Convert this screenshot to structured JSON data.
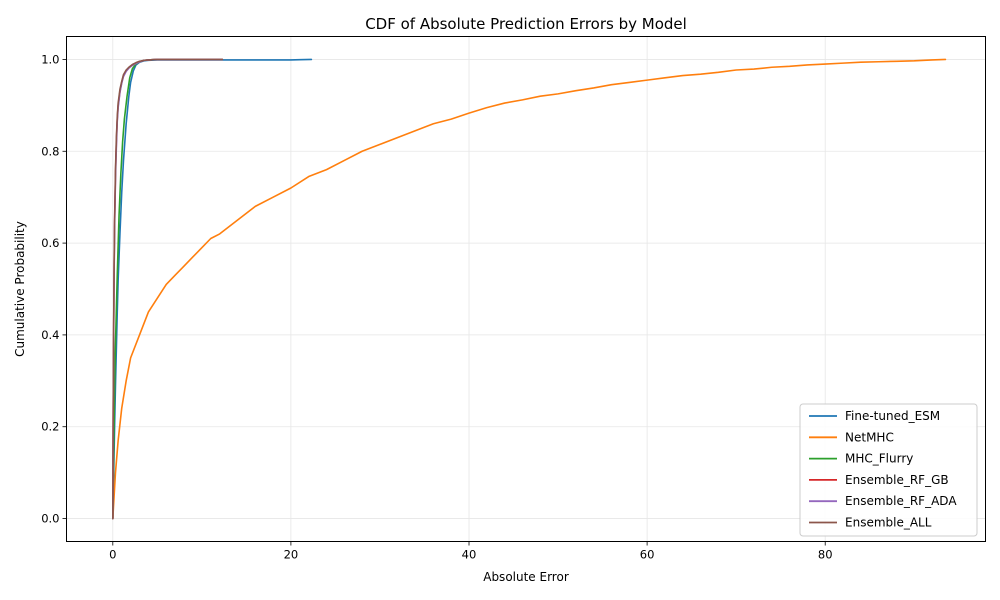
{
  "chart_data": {
    "type": "line",
    "title": "CDF of Absolute Prediction Errors by Model",
    "xlabel": "Absolute Error",
    "ylabel": "Cumulative Probability",
    "xlim": [
      -5.2,
      98
    ],
    "ylim": [
      -0.05,
      1.05
    ],
    "xticks": [
      0,
      20,
      40,
      60,
      80
    ],
    "yticks": [
      0.0,
      0.2,
      0.4,
      0.6,
      0.8,
      1.0
    ],
    "grid": true,
    "legend_position": "lower-right",
    "series": [
      {
        "name": "Fine-tuned_ESM",
        "color": "#1f77b4",
        "x": [
          0,
          0.1,
          0.2,
          0.3,
          0.4,
          0.5,
          0.6,
          0.8,
          1.0,
          1.2,
          1.5,
          1.8,
          2.0,
          2.3,
          2.6,
          3.0,
          3.5,
          4.0,
          5.0,
          8.0,
          12.0,
          16.0,
          20.0,
          21.0,
          22.3
        ],
        "y": [
          0,
          0.1,
          0.2,
          0.29,
          0.37,
          0.45,
          0.52,
          0.62,
          0.71,
          0.78,
          0.86,
          0.92,
          0.95,
          0.975,
          0.988,
          0.994,
          0.997,
          0.998,
          0.999,
          0.999,
          0.999,
          0.999,
          0.999,
          0.9995,
          1.0
        ]
      },
      {
        "name": "NetMHC",
        "color": "#ff7f0e",
        "x": [
          0,
          0.3,
          0.6,
          1.0,
          1.5,
          2.0,
          3.0,
          4.0,
          5.0,
          6.0,
          7.0,
          8.0,
          9.0,
          10.0,
          11.0,
          12.0,
          14.0,
          16.0,
          18.0,
          20.0,
          22.0,
          24.0,
          26.0,
          28.0,
          30.0,
          32.0,
          34.0,
          36.0,
          38.0,
          40.0,
          42.0,
          44.0,
          46.0,
          48.0,
          50.0,
          52.0,
          54.0,
          56.0,
          58.0,
          60.0,
          62.0,
          64.0,
          66.0,
          68.0,
          70.0,
          72.0,
          74.0,
          76.0,
          78.0,
          80.0,
          82.0,
          84.0,
          86.0,
          88.0,
          90.0,
          92.0,
          93.5
        ],
        "y": [
          0,
          0.1,
          0.17,
          0.24,
          0.3,
          0.35,
          0.4,
          0.45,
          0.48,
          0.51,
          0.53,
          0.55,
          0.57,
          0.59,
          0.61,
          0.62,
          0.65,
          0.68,
          0.7,
          0.72,
          0.745,
          0.76,
          0.78,
          0.8,
          0.815,
          0.83,
          0.845,
          0.86,
          0.87,
          0.883,
          0.895,
          0.905,
          0.912,
          0.92,
          0.925,
          0.932,
          0.938,
          0.945,
          0.95,
          0.955,
          0.96,
          0.965,
          0.968,
          0.972,
          0.977,
          0.979,
          0.983,
          0.985,
          0.988,
          0.99,
          0.992,
          0.994,
          0.995,
          0.996,
          0.997,
          0.999,
          1.0
        ]
      },
      {
        "name": "MHC_Flurry",
        "color": "#2ca02c",
        "x": [
          0,
          0.1,
          0.2,
          0.3,
          0.5,
          0.7,
          0.9,
          1.1,
          1.3,
          1.6,
          1.9,
          2.2,
          2.6,
          3.0,
          3.5,
          4.0,
          5.0,
          7.0,
          10.0,
          12.3
        ],
        "y": [
          0,
          0.15,
          0.28,
          0.38,
          0.53,
          0.66,
          0.75,
          0.82,
          0.87,
          0.92,
          0.96,
          0.98,
          0.99,
          0.995,
          0.998,
          0.999,
          1.0,
          1.0,
          1.0,
          1.0
        ]
      },
      {
        "name": "Ensemble_RF_GB",
        "color": "#d62728",
        "x": [
          0,
          0.05,
          0.1,
          0.15,
          0.2,
          0.3,
          0.4,
          0.5,
          0.6,
          0.8,
          1.0,
          1.2,
          1.5,
          1.8,
          2.2,
          2.6,
          3.0,
          3.5,
          4.0,
          5.0,
          8.0,
          12.3
        ],
        "y": [
          0,
          0.25,
          0.42,
          0.55,
          0.64,
          0.75,
          0.82,
          0.87,
          0.9,
          0.93,
          0.95,
          0.965,
          0.975,
          0.982,
          0.988,
          0.992,
          0.995,
          0.998,
          0.999,
          1.0,
          1.0,
          1.0
        ]
      },
      {
        "name": "Ensemble_RF_ADA",
        "color": "#9467bd",
        "x": [
          0,
          0.05,
          0.1,
          0.15,
          0.2,
          0.3,
          0.4,
          0.5,
          0.6,
          0.8,
          1.0,
          1.2,
          1.5,
          1.8,
          2.2,
          2.6,
          3.0,
          3.5,
          4.0,
          5.0,
          8.0,
          12.3
        ],
        "y": [
          0,
          0.24,
          0.41,
          0.54,
          0.63,
          0.74,
          0.81,
          0.865,
          0.895,
          0.928,
          0.948,
          0.963,
          0.974,
          0.981,
          0.987,
          0.991,
          0.995,
          0.998,
          0.999,
          1.0,
          1.0,
          1.0
        ]
      },
      {
        "name": "Ensemble_ALL",
        "color": "#8c564b",
        "x": [
          0,
          0.05,
          0.1,
          0.15,
          0.2,
          0.3,
          0.4,
          0.5,
          0.6,
          0.8,
          1.0,
          1.2,
          1.5,
          1.8,
          2.2,
          2.6,
          3.0,
          3.5,
          4.0,
          5.0,
          8.0,
          12.3
        ],
        "y": [
          0,
          0.26,
          0.43,
          0.56,
          0.65,
          0.76,
          0.83,
          0.875,
          0.905,
          0.935,
          0.952,
          0.967,
          0.977,
          0.983,
          0.989,
          0.993,
          0.996,
          0.998,
          0.999,
          1.0,
          1.0,
          1.0
        ]
      }
    ]
  }
}
